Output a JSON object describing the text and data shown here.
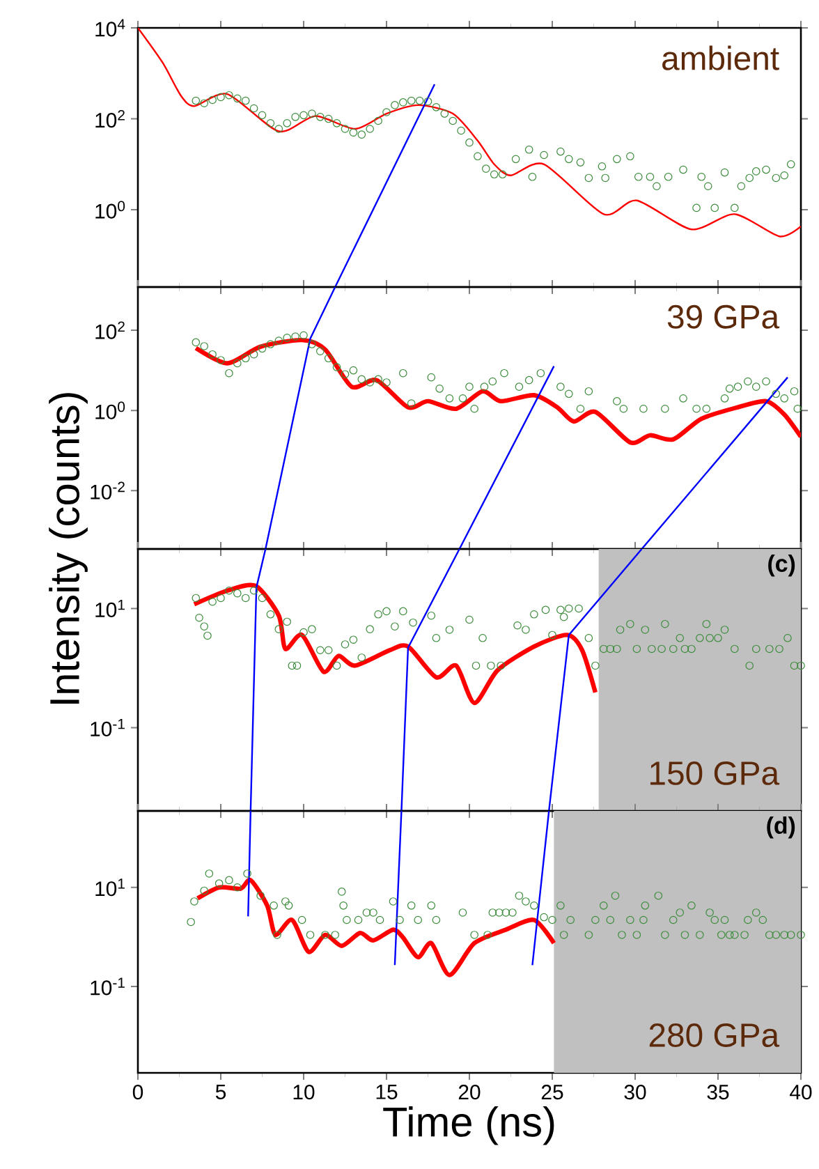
{
  "chart_data": [
    {
      "type": "scatter",
      "log": true,
      "xlim": [
        0,
        40
      ],
      "xticks": [
        0,
        5,
        10,
        15,
        20,
        25,
        30,
        35,
        40
      ],
      "ylim": [
        0.02,
        10000
      ],
      "tick_labels": "y",
      "yticks": [
        {
          "value": 10000,
          "label": "10$^{4}$"
        },
        {
          "value": 100,
          "label": "10$^{2}$"
        },
        {
          "value": 1,
          "label": "10$^{0}$"
        }
      ],
      "annotations": [
        "ambient"
      ],
      "series": [
        {
          "marker": "circle",
          "color": "#3c8c3c",
          "x": [
            3.5,
            4,
            4.5,
            5,
            5.5,
            6,
            6.5,
            7,
            7.5,
            8,
            8.5,
            9,
            9.5,
            10,
            10.5,
            11,
            11.5,
            12,
            12.5,
            13,
            13.5,
            14,
            14.5,
            15,
            15.5,
            16,
            16.5,
            17,
            17.5,
            18,
            18.5,
            19,
            19.5,
            20,
            20.5,
            21,
            21.5,
            22,
            22.8,
            23.6,
            23.8,
            24.5,
            25.5,
            26,
            26.7,
            27.2,
            28,
            28.2,
            28.9,
            29.7,
            30.2,
            30.9,
            31.3,
            32,
            32.9,
            33.7,
            34,
            34.4,
            34.8,
            35.4,
            36,
            36.4,
            36.9,
            37.3,
            37.9,
            38.5,
            39,
            39.4
          ],
          "values": [
            250,
            220,
            260,
            300,
            330,
            280,
            250,
            170,
            120,
            80,
            60,
            80,
            110,
            120,
            130,
            110,
            100,
            80,
            60,
            50,
            45,
            60,
            90,
            140,
            200,
            230,
            250,
            250,
            240,
            180,
            130,
            90,
            55,
            30,
            15,
            8,
            6,
            6,
            13,
            21,
            5.3,
            16,
            19,
            13,
            11,
            5,
            9,
            5,
            13,
            15,
            5.3,
            5.3,
            3.3,
            5.3,
            7.6,
            1.1,
            5.3,
            3.3,
            1.1,
            6.6,
            1.1,
            3.3,
            5,
            7,
            7.6,
            5,
            5.7,
            10
          ]
        },
        {
          "type": "line",
          "marker": "none",
          "color": "#ff0000",
          "x": [
            0,
            1.5,
            2.6,
            3.4,
            5.4,
            8.5,
            10.7,
            13.1,
            15,
            16.9,
            19,
            20.5,
            21.5,
            22.5,
            24.5,
            28.1,
            30.1,
            33.4,
            36,
            38.7,
            40
          ],
          "values": [
            10000,
            1700,
            320,
            190,
            350,
            53,
            115,
            60,
            130,
            200,
            130,
            33,
            10,
            5.7,
            10,
            0.8,
            1.6,
            0.37,
            0.8,
            0.26,
            0.43
          ]
        },
        {
          "type": "line",
          "marker": "none",
          "color": "#0000ff",
          "x": [
            17.9,
            11.9
          ],
          "values": [
            575,
            0.02
          ]
        }
      ]
    },
    {
      "type": "scatter",
      "log": true,
      "xlim": [
        0,
        40
      ],
      "xticks": [
        0,
        5,
        10,
        15,
        20,
        25,
        30,
        35,
        40
      ],
      "ylim": [
        0.00035,
        1200
      ],
      "tick_labels": "y",
      "yticks": [
        {
          "value": 100,
          "label": "10$^{2}$"
        },
        {
          "value": 1,
          "label": "10$^{0}$"
        },
        {
          "value": 0.01,
          "label": "10$^{-2}$"
        }
      ],
      "ylabel": "Intensity (counts)",
      "annotations": [
        "39 GPa"
      ],
      "series": [
        {
          "marker": "circle",
          "color": "#3c8c3c",
          "x": [
            3.5,
            4,
            4.5,
            5,
            5.5,
            6,
            6.5,
            7,
            7.5,
            8,
            8.5,
            9,
            9.5,
            10,
            10.5,
            11,
            11.5,
            12,
            12.5,
            13,
            13.5,
            14,
            14.5,
            15,
            16,
            16.5,
            17.7,
            18.2,
            18.8,
            19.6,
            20,
            20.3,
            20.9,
            21.4,
            22.1,
            23,
            23.6,
            24.3,
            25.5,
            26,
            27.2,
            26.7,
            28.9,
            29.3,
            30.5,
            31.8,
            32.9,
            33.7,
            34.3,
            35.4,
            35.7,
            36.2,
            36.8,
            37.3,
            37.9,
            38.5,
            39,
            39.6,
            39.8
          ],
          "values": [
            50,
            40,
            25,
            18,
            8.5,
            15,
            20,
            25,
            35,
            45,
            55,
            65,
            70,
            75,
            45,
            30,
            20,
            12,
            8,
            10,
            6,
            5,
            6,
            5,
            8.5,
            1.5,
            6.7,
            3.5,
            2,
            2,
            3.9,
            1.1,
            3.9,
            5.3,
            8.5,
            3.9,
            5.7,
            8.5,
            3.9,
            2.6,
            3,
            1.1,
            1.7,
            1.1,
            1.1,
            1.1,
            2,
            1.1,
            1.1,
            2,
            3.5,
            3.9,
            5.3,
            3.9,
            5.3,
            2.6,
            2,
            3,
            1.1
          ]
        },
        {
          "type": "line",
          "marker": "none",
          "color": "#ff0000",
          "x": [
            3.5,
            5.4,
            7.4,
            9.9,
            11.3,
            12.9,
            14.4,
            16.3,
            17.5,
            19.2,
            20.8,
            21.9,
            23.9,
            25.3,
            26.3,
            27.6,
            29.7,
            30.9,
            32.3,
            34,
            36.2,
            37.9,
            39,
            40
          ],
          "values": [
            36,
            15,
            39,
            57,
            33,
            3.9,
            5.7,
            1.2,
            1.7,
            1.1,
            3,
            1.7,
            2.4,
            1.2,
            0.53,
            0.92,
            0.16,
            0.24,
            0.19,
            0.62,
            1.2,
            1.7,
            0.79,
            0.22
          ]
        },
        {
          "type": "line",
          "marker": "none",
          "color": "#0000ff",
          "x": [
            11.9,
            10.4,
            7.7
          ],
          "values": [
            1200,
            62,
            0.00035
          ]
        },
        {
          "type": "line",
          "marker": "none",
          "color": "#0000ff",
          "x": [
            25.1,
            19.4
          ],
          "values": [
            12.7,
            0.00035
          ]
        },
        {
          "type": "line",
          "marker": "none",
          "color": "#0000ff",
          "x": [
            39.2,
            30.4
          ],
          "values": [
            6.7,
            0.00035
          ]
        }
      ]
    },
    {
      "type": "scatter",
      "log": true,
      "xlim": [
        0,
        40
      ],
      "xticks": [
        0,
        5,
        10,
        15,
        20,
        25,
        30,
        35,
        40
      ],
      "ylim": [
        0.004,
        100
      ],
      "tick_labels": "y",
      "yticks": [
        {
          "value": 10,
          "label": "10$^{1}$"
        },
        {
          "value": 0.1,
          "label": "10$^{-1}$"
        }
      ],
      "annotations": [
        "(c)",
        "150 GPa"
      ],
      "bands": [
        {
          "axis": "x",
          "from": 27.8,
          "to": 40,
          "color": "#c0c0c0"
        }
      ],
      "series": [
        {
          "marker": "circle",
          "color": "#3c8c3c",
          "x": [
            3.5,
            3.7,
            4,
            4.2,
            4.5,
            5,
            5.5,
            6,
            6.5,
            7,
            7.5,
            8,
            8.5,
            9,
            9.3,
            9.6,
            10,
            10.5,
            11,
            11.5,
            12,
            12.5,
            13,
            13.5,
            14,
            14.5,
            15,
            15.5,
            16,
            16.6,
            17.7,
            18,
            18.8,
            20,
            20.8,
            20.4,
            21.3,
            21.9,
            22.9,
            23.4,
            23.9,
            24.6,
            25,
            25.5,
            25.7,
            26,
            26.6,
            27.2,
            27.6,
            28.1,
            28.5,
            28.9,
            29.1,
            29.7,
            30.1,
            30.6,
            31,
            31.6,
            31.8,
            32.3,
            32.7,
            33,
            33.4,
            33.9,
            34.3,
            34.5,
            35,
            35.4,
            36,
            36.9,
            37.3,
            38.1,
            38.7,
            39.2,
            39.6,
            40
          ],
          "values": [
            15,
            7,
            5,
            3.5,
            13,
            15,
            20,
            18,
            15,
            20,
            15,
            8,
            4.5,
            6,
            1.1,
            1.1,
            4,
            4.5,
            2,
            2,
            1.1,
            2.5,
            3,
            1.5,
            4.5,
            8,
            9,
            5,
            9,
            5.8,
            7.6,
            3.2,
            4.4,
            6.5,
            3.2,
            1.1,
            1.1,
            1.1,
            5.2,
            4.4,
            8,
            9.5,
            3.6,
            9.5,
            7.2,
            10,
            10,
            3.2,
            1.1,
            2.1,
            2.1,
            2.1,
            4.4,
            5.5,
            2.1,
            4.4,
            2.1,
            2.1,
            5.5,
            2.1,
            3.2,
            2.1,
            2.1,
            3.2,
            5.5,
            3.2,
            3.2,
            4.4,
            2.1,
            1.1,
            2.1,
            2.1,
            2.1,
            3.2,
            1.1,
            1.1
          ]
        },
        {
          "type": "line",
          "marker": "none",
          "color": "#ff0000",
          "x": [
            3.4,
            5.4,
            7.1,
            8.5,
            8.9,
            9.9,
            11.2,
            12.1,
            13.1,
            15.2,
            16.3,
            18,
            19.2,
            20.3,
            21.7,
            23.9,
            25.9,
            26.8,
            27.6
          ],
          "values": [
            11.8,
            20,
            24,
            7.6,
            2.1,
            3.6,
            0.87,
            1.6,
            1.1,
            2,
            2.3,
            0.7,
            1.1,
            0.26,
            0.92,
            2.3,
            3.6,
            2,
            0.39
          ]
        },
        {
          "type": "line",
          "marker": "none",
          "color": "#0000ff",
          "x": [
            7.7,
            7.15,
            6.8
          ],
          "values": [
            100,
            22.5,
            0.004
          ]
        },
        {
          "type": "line",
          "marker": "none",
          "color": "#0000ff",
          "x": [
            19.4,
            16.3,
            15.9
          ],
          "values": [
            100,
            2.2,
            0.004
          ]
        },
        {
          "type": "line",
          "marker": "none",
          "color": "#0000ff",
          "x": [
            30.4,
            26,
            24.8
          ],
          "values": [
            100,
            3.6,
            0.004
          ]
        }
      ]
    },
    {
      "type": "scatter",
      "log": true,
      "xlim": [
        0,
        40
      ],
      "xticks": [
        0,
        5,
        10,
        15,
        20,
        25,
        30,
        35,
        40
      ],
      "ylim": [
        0.0018,
        350
      ],
      "yticks": [
        {
          "value": 10,
          "label": "10$^{1}$"
        },
        {
          "value": 0.1,
          "label": "10$^{-1}$"
        }
      ],
      "xlabel": "Time (ns)",
      "annotations": [
        "(d)",
        "280 GPa"
      ],
      "bands": [
        {
          "axis": "x",
          "from": 25.1,
          "to": 40,
          "color": "#c0c0c0"
        }
      ],
      "series": [
        {
          "marker": "circle",
          "color": "#3c8c3c",
          "x": [
            3.2,
            3.4,
            4,
            4.3,
            4.9,
            5.5,
            6,
            6.6,
            7.4,
            8.2,
            8.4,
            8.9,
            9.1,
            9.9,
            10.4,
            11.3,
            11.9,
            12.3,
            12.4,
            12.6,
            13.3,
            13.8,
            14.2,
            14.6,
            15.4,
            15.8,
            16.5,
            16.9,
            17.7,
            18,
            19.6,
            20.3,
            21.1,
            21.4,
            21.8,
            22.2,
            22.6,
            23,
            23.4,
            23.9,
            24.5,
            25,
            25.5,
            25.7,
            26.1,
            27.2,
            27.6,
            28.1,
            28.5,
            28.8,
            29.2,
            29.7,
            30.1,
            30.5,
            30.6,
            31.4,
            31.8,
            32.3,
            32.7,
            33,
            33.4,
            33.9,
            34.5,
            34.8,
            35.2,
            35.4,
            35.7,
            36,
            36.6,
            36.8,
            37.3,
            37.7,
            38.1,
            38.5,
            39,
            39.4,
            40
          ],
          "values": [
            2,
            5.2,
            8.6,
            19,
            12,
            14,
            10,
            19,
            6.8,
            4.3,
            1.1,
            5.2,
            4.3,
            2.2,
            1.1,
            1.1,
            1.1,
            8.2,
            4.3,
            2.2,
            2.2,
            3.1,
            3.1,
            2.2,
            5.2,
            2.2,
            4.3,
            2.2,
            4.3,
            2.2,
            3.1,
            1.1,
            1.1,
            3.1,
            3.1,
            3.1,
            3.1,
            6.8,
            5.2,
            4.3,
            2.5,
            2.2,
            4.3,
            1.1,
            2.2,
            1.1,
            2.2,
            4.3,
            2.2,
            6.8,
            1.1,
            2.2,
            1.1,
            2.2,
            4.3,
            6.8,
            1.1,
            2.2,
            3.1,
            1.1,
            4.3,
            1.1,
            3.1,
            2.2,
            1.1,
            2.2,
            1.1,
            1.1,
            1.1,
            2.2,
            3.1,
            2.2,
            1.1,
            1.1,
            1.1,
            1.1,
            1.1
          ]
        },
        {
          "type": "line",
          "marker": "none",
          "color": "#ff0000",
          "x": [
            3.6,
            4.9,
            6.2,
            6.8,
            7.8,
            8.3,
            9.3,
            10.3,
            11.3,
            12.3,
            13.4,
            14.2,
            15.4,
            16,
            16.9,
            17.7,
            18.8,
            20.3,
            22.2,
            23.9,
            25.1
          ],
          "values": [
            6,
            10,
            9.4,
            14,
            4.3,
            1.1,
            2.2,
            0.5,
            1.1,
            0.66,
            1.2,
            0.85,
            1.4,
            0.97,
            0.39,
            0.75,
            0.17,
            0.75,
            1.4,
            2.2,
            0.75
          ]
        },
        {
          "type": "line",
          "marker": "none",
          "color": "#0000ff",
          "x": [
            6.8,
            6.65
          ],
          "values": [
            350,
            2.6
          ]
        },
        {
          "type": "line",
          "marker": "none",
          "color": "#0000ff",
          "x": [
            15.9,
            15.5
          ],
          "values": [
            350,
            0.27
          ]
        },
        {
          "type": "line",
          "marker": "none",
          "color": "#0000ff",
          "x": [
            24.8,
            23.8
          ],
          "values": [
            350,
            0.27
          ]
        }
      ]
    }
  ]
}
